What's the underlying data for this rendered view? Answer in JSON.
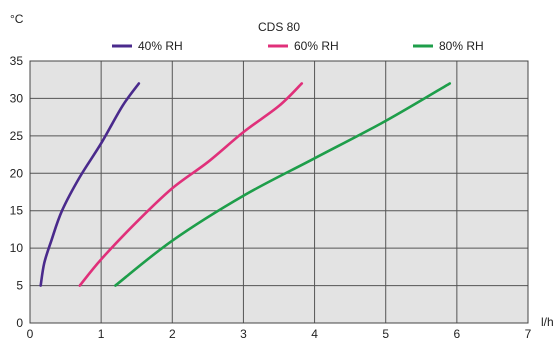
{
  "chart_data": {
    "type": "line",
    "title": "CDS 80",
    "xlabel": "l/h",
    "ylabel": "°C",
    "xlim": [
      0,
      7
    ],
    "ylim": [
      0,
      35
    ],
    "xticks": [
      0,
      1,
      2,
      3,
      4,
      5,
      6,
      7
    ],
    "yticks": [
      0,
      5,
      10,
      15,
      20,
      25,
      30,
      35
    ],
    "grid": true,
    "legend_position": "top",
    "plot_background": "#e3e3e3",
    "series": [
      {
        "name": "40% RH",
        "color": "#4a2a8c",
        "points": [
          [
            0.15,
            5
          ],
          [
            0.2,
            8
          ],
          [
            0.3,
            11
          ],
          [
            0.45,
            15
          ],
          [
            0.7,
            19.5
          ],
          [
            1.0,
            24
          ],
          [
            1.3,
            29
          ],
          [
            1.53,
            32
          ]
        ]
      },
      {
        "name": "60% RH",
        "color": "#e0307a",
        "points": [
          [
            0.7,
            5
          ],
          [
            1.0,
            8.5
          ],
          [
            1.5,
            13.5
          ],
          [
            2.0,
            18
          ],
          [
            2.5,
            21.5
          ],
          [
            3.0,
            25.5
          ],
          [
            3.5,
            29
          ],
          [
            3.82,
            32
          ]
        ]
      },
      {
        "name": "80% RH",
        "color": "#1e9e4a",
        "points": [
          [
            1.2,
            5
          ],
          [
            2.0,
            11
          ],
          [
            3.0,
            17
          ],
          [
            4.0,
            22
          ],
          [
            5.0,
            27
          ],
          [
            5.9,
            32
          ]
        ]
      }
    ]
  }
}
